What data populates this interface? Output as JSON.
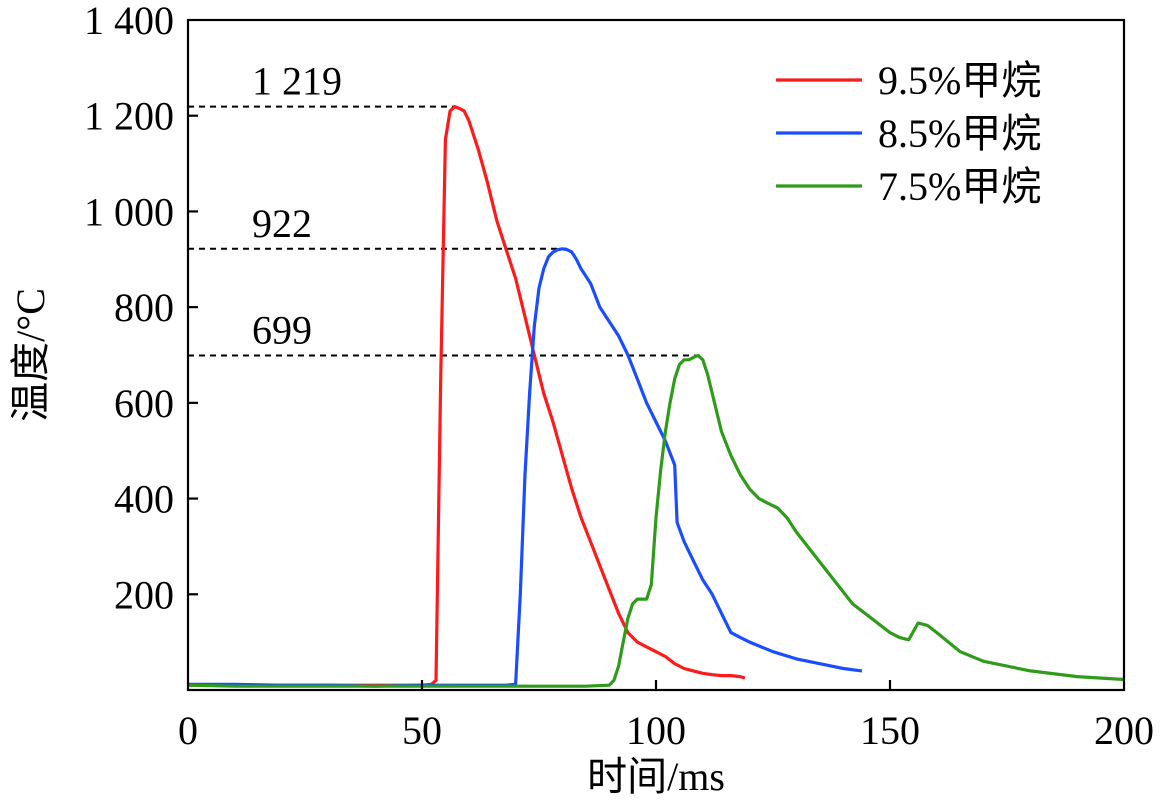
{
  "chart_data": {
    "type": "line",
    "xlabel": "时间/ms",
    "ylabel": "温度/°C",
    "xlim": [
      0,
      200
    ],
    "ylim": [
      0,
      1400
    ],
    "x_ticks": [
      0,
      50,
      100,
      150,
      200
    ],
    "x_tick_labels": [
      "0",
      "50",
      "100",
      "150",
      "200"
    ],
    "y_ticks": [
      200,
      400,
      600,
      800,
      1000,
      1200,
      1400
    ],
    "y_tick_labels": [
      "200",
      "400",
      "600",
      "800",
      "1 000",
      "1 200",
      "1 400"
    ],
    "grid": false,
    "legend_position": "top-right",
    "reference_lines": [
      {
        "label": "1 219",
        "value": 1219,
        "x_end": 57
      },
      {
        "label": "922",
        "value": 922,
        "x_end": 81
      },
      {
        "label": "699",
        "value": 699,
        "x_end": 110
      }
    ],
    "series": [
      {
        "name": "9.5%甲烷",
        "color": "#ff1a1a",
        "x": [
          0,
          10,
          20,
          30,
          40,
          50,
          52,
          53,
          54,
          55,
          56,
          57,
          58,
          59,
          60,
          62,
          64,
          66,
          68,
          70,
          72,
          74,
          76,
          78,
          80,
          82,
          84,
          86,
          88,
          90,
          92,
          94,
          96,
          98,
          100,
          102,
          104,
          106,
          108,
          110,
          112,
          114,
          116,
          118,
          119
        ],
        "y": [
          10,
          10,
          10,
          10,
          10,
          10,
          12,
          20,
          650,
          1150,
          1210,
          1219,
          1215,
          1210,
          1190,
          1130,
          1060,
          980,
          920,
          860,
          780,
          700,
          620,
          560,
          490,
          420,
          360,
          310,
          260,
          210,
          160,
          120,
          100,
          90,
          80,
          70,
          55,
          45,
          40,
          35,
          32,
          30,
          30,
          28,
          25
        ]
      },
      {
        "name": "8.5%甲烷",
        "color": "#1a4dff",
        "x": [
          0,
          10,
          20,
          30,
          40,
          50,
          60,
          68,
          70,
          71,
          72,
          73,
          74,
          75,
          76,
          77,
          78,
          79,
          80,
          81,
          82,
          83,
          84,
          86,
          88,
          90,
          92,
          94,
          96,
          98,
          100,
          102,
          104,
          104.5,
          106,
          108,
          110,
          112,
          114,
          116,
          118,
          120,
          125,
          130,
          135,
          140,
          144
        ],
        "y": [
          12,
          12,
          10,
          10,
          8,
          10,
          10,
          10,
          12,
          200,
          450,
          620,
          760,
          840,
          880,
          905,
          915,
          920,
          922,
          920,
          915,
          900,
          880,
          850,
          800,
          770,
          740,
          700,
          650,
          600,
          560,
          520,
          470,
          350,
          310,
          270,
          230,
          200,
          160,
          120,
          110,
          100,
          80,
          65,
          55,
          45,
          40
        ]
      },
      {
        "name": "7.5%甲烷",
        "color": "#2e9c1a",
        "x": [
          0,
          10,
          20,
          30,
          40,
          50,
          60,
          70,
          80,
          85,
          90,
          91,
          92,
          93,
          94,
          95,
          96,
          97,
          98,
          99,
          100,
          101,
          102,
          103,
          104,
          105,
          106,
          107,
          108,
          109,
          110,
          111,
          112,
          114,
          116,
          118,
          120,
          122,
          124,
          126,
          128,
          130,
          134,
          138,
          142,
          146,
          150,
          152,
          154,
          156,
          158,
          160,
          165,
          170,
          180,
          190,
          200
        ],
        "y": [
          10,
          8,
          8,
          8,
          8,
          8,
          8,
          8,
          8,
          8,
          10,
          20,
          50,
          100,
          150,
          180,
          190,
          190,
          190,
          220,
          360,
          460,
          540,
          600,
          650,
          680,
          690,
          690,
          695,
          699,
          690,
          660,
          620,
          540,
          490,
          450,
          420,
          400,
          390,
          380,
          360,
          330,
          280,
          230,
          180,
          150,
          120,
          110,
          105,
          140,
          135,
          120,
          80,
          60,
          40,
          28,
          22
        ]
      }
    ]
  }
}
